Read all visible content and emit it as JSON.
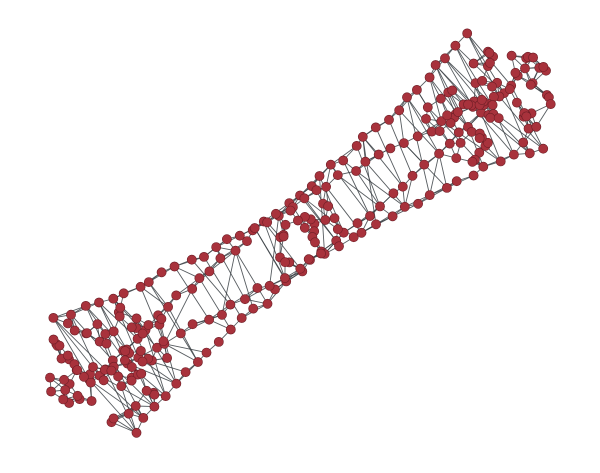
{
  "graph": {
    "style": {
      "background": "#ffffff",
      "node_fill": "#a8323c",
      "node_stroke": "#6e1e26",
      "edge_color": "#3a3f44"
    }
  }
}
